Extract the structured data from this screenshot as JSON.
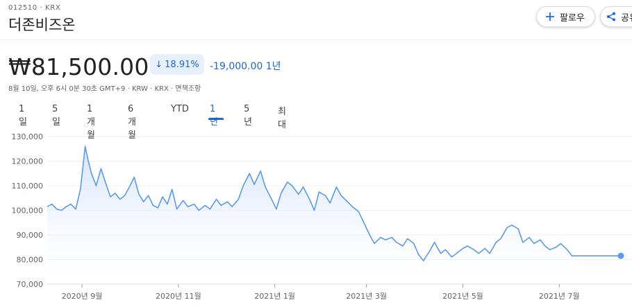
{
  "header": {
    "ticker_line": "012510 · KRX",
    "company_name": "더존비즈온",
    "follow_button": "팔로우",
    "share_button": "공유"
  },
  "quote": {
    "price": "₩81,500.00",
    "change_percent": "18.91%",
    "change_arrow": "↓",
    "change_abs": "-19,000.00 1년",
    "meta_line": "8월 10일, 오후 6시 0분 30초 GMT+9 · KRW · KRX · 면책조항"
  },
  "tabs": [
    {
      "label": "1일",
      "active": false
    },
    {
      "label": "5일",
      "active": false
    },
    {
      "label": "1개월",
      "active": false
    },
    {
      "label": "6개월",
      "active": false
    },
    {
      "label": "YTD",
      "active": false
    },
    {
      "label": "1년",
      "active": true
    },
    {
      "label": "5년",
      "active": false
    },
    {
      "label": "최대",
      "active": false
    }
  ],
  "colors": {
    "line": "#5b9ae8",
    "fill_top": "#cfe0f8",
    "accent": "#1967d2"
  },
  "chart_data": {
    "type": "area",
    "ylim": [
      70000,
      130000
    ],
    "yticks": [
      70000,
      80000,
      90000,
      100000,
      110000,
      120000,
      130000
    ],
    "ytick_labels": [
      "70,000",
      "80,000",
      "90,000",
      "100,000",
      "110,000",
      "120,000",
      "130,000"
    ],
    "x_range": [
      0,
      363
    ],
    "xticks": [
      {
        "label": "2020년 9월",
        "x": 22
      },
      {
        "label": "2020년 11월",
        "x": 83
      },
      {
        "label": "2021년 1월",
        "x": 144
      },
      {
        "label": "2021년 3월",
        "x": 202
      },
      {
        "label": "2021년 5월",
        "x": 263
      },
      {
        "label": "2021년 7월",
        "x": 324
      }
    ],
    "series": [
      {
        "x": [
          0,
          3,
          6,
          9,
          12,
          15,
          18,
          21,
          24,
          26,
          28,
          31,
          34,
          37,
          40,
          43,
          46,
          49,
          52,
          55,
          58,
          61,
          64,
          67,
          70,
          73,
          76,
          79,
          82,
          86,
          89,
          93,
          96,
          100,
          103,
          107,
          110,
          114,
          117,
          121,
          124,
          128,
          131,
          135,
          138,
          142,
          145,
          148,
          152,
          155,
          159,
          162,
          166,
          169,
          172,
          176,
          179,
          183,
          186,
          190,
          193,
          197,
          200,
          204,
          207,
          211,
          214,
          218,
          221,
          225,
          228,
          232,
          235,
          238,
          242,
          245,
          249,
          252,
          256,
          259,
          263,
          266,
          270,
          273,
          277,
          280,
          284,
          287,
          291,
          294,
          298,
          301,
          305,
          308,
          312,
          315,
          318,
          322,
          325,
          329,
          332,
          336,
          339,
          343,
          346,
          350,
          353,
          357,
          360,
          363
        ],
        "values": [
          101500,
          102500,
          100500,
          100000,
          101500,
          102500,
          100500,
          108500,
          126000,
          120000,
          115000,
          110000,
          117000,
          111000,
          105500,
          107000,
          104500,
          106000,
          109500,
          113500,
          106500,
          103500,
          106000,
          102000,
          101000,
          105500,
          102500,
          108500,
          100500,
          104000,
          101500,
          102500,
          100000,
          102000,
          100500,
          104500,
          102000,
          103500,
          101500,
          104500,
          110000,
          115000,
          110500,
          116000,
          109500,
          104500,
          100500,
          107000,
          111500,
          110000,
          106500,
          109500,
          104500,
          100000,
          107500,
          106000,
          103000,
          109500,
          106000,
          103500,
          101500,
          99500,
          95500,
          90000,
          86500,
          89000,
          88000,
          89000,
          87000,
          85500,
          88500,
          86500,
          82000,
          79500,
          83500,
          87000,
          82500,
          84000,
          81000,
          82500,
          84500,
          85500,
          84000,
          82500,
          84500,
          82500,
          87000,
          88500,
          93000,
          94000,
          92500,
          87000,
          89000,
          86500,
          88000,
          85500,
          84000,
          85000,
          86500,
          84000,
          81500,
          81500,
          81500,
          81500,
          81500,
          81500,
          81500,
          81500,
          81500,
          81500
        ]
      }
    ]
  }
}
